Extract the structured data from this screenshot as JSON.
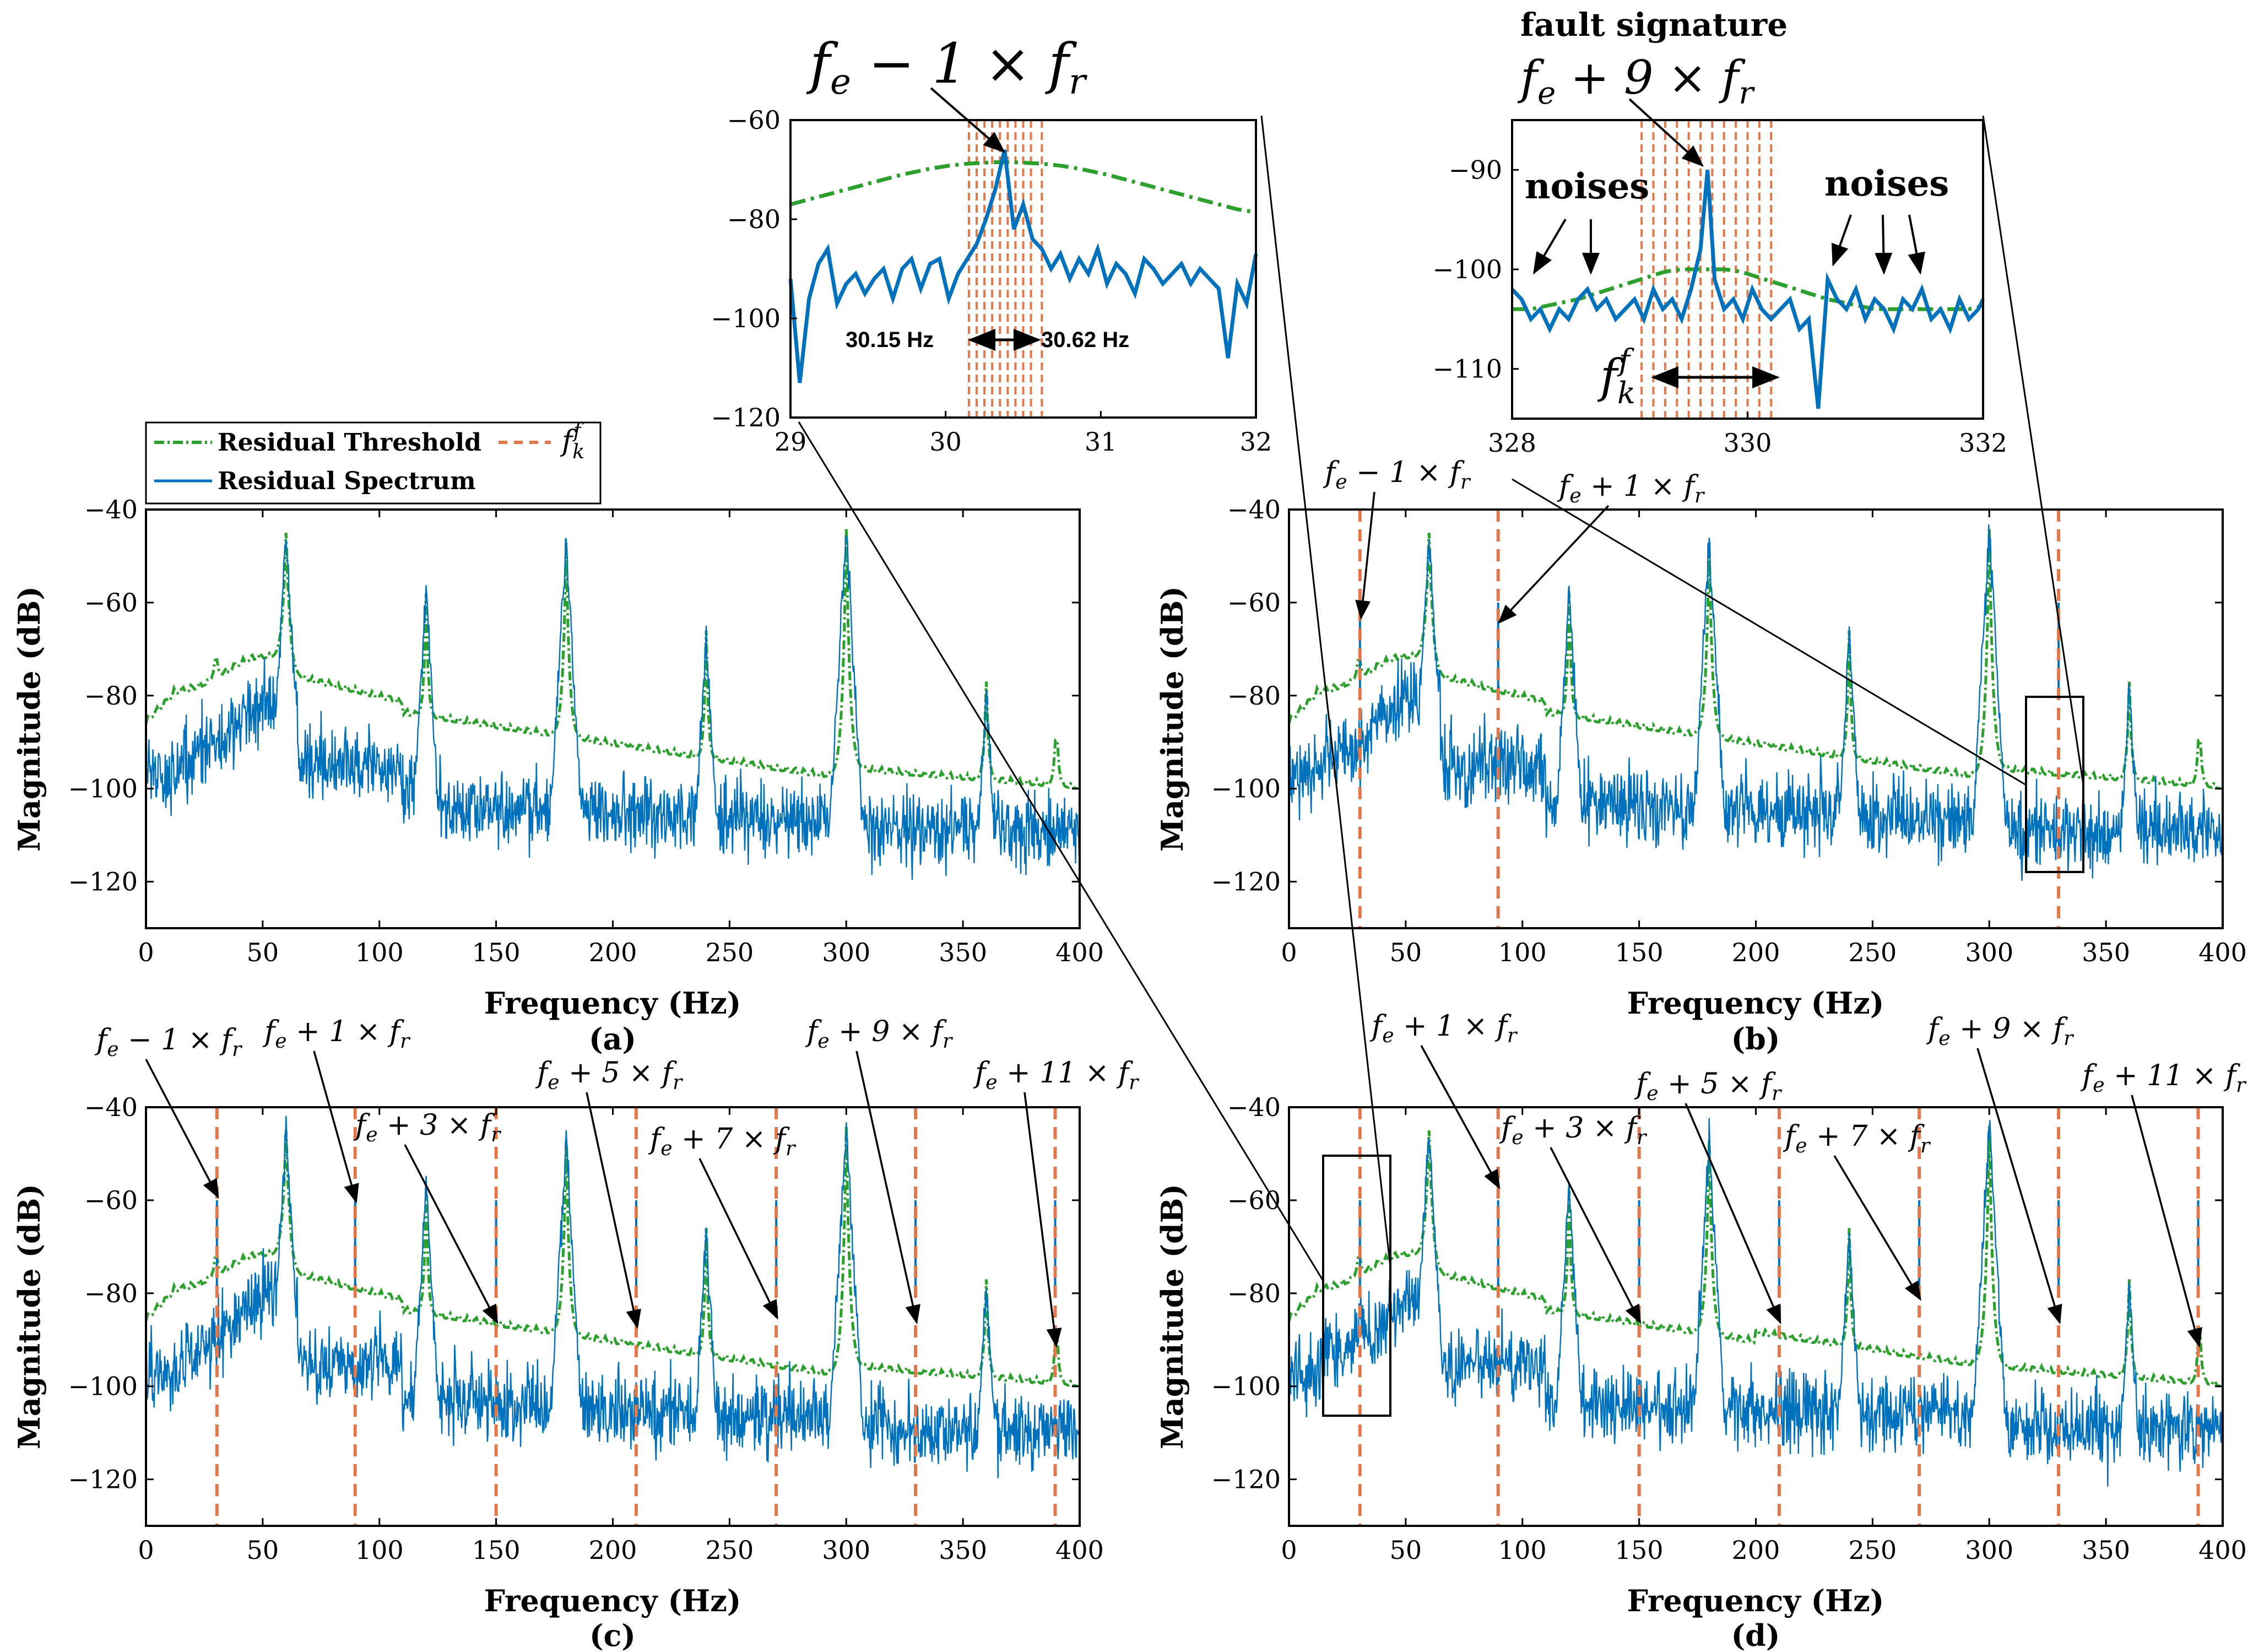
{
  "colors": {
    "spectrum": "#0072BD",
    "threshold": "#2CA02C",
    "fault": "#E2774A",
    "axis": "#000000"
  },
  "legend": {
    "threshold_label": "Residual Threshold",
    "spectrum_label": "Residual Spectrum",
    "fault_label": "f",
    "fault_sup": "f",
    "fault_sub": "k"
  },
  "common": {
    "xlabel": "Frequency (Hz)",
    "ylabel": "Magnitude (dB)"
  },
  "chart_data": [
    {
      "id": "a",
      "type": "line",
      "panel_label": "(a)",
      "xlim": [
        0,
        400
      ],
      "ylim": [
        -130,
        -40
      ],
      "xticks": [
        "0",
        "50",
        "100",
        "150",
        "200",
        "250",
        "300",
        "350",
        "400"
      ],
      "yticks": [
        "−40",
        "−60",
        "−80",
        "−100",
        "−120"
      ],
      "peaks_hz": [
        60,
        120,
        180,
        240,
        300,
        360
      ],
      "fault_lines_hz": [],
      "annotations": []
    },
    {
      "id": "b",
      "type": "line",
      "panel_label": "(b)",
      "xlim": [
        0,
        400
      ],
      "ylim": [
        -130,
        -40
      ],
      "xticks": [
        "0",
        "50",
        "100",
        "150",
        "200",
        "250",
        "300",
        "350",
        "400"
      ],
      "yticks": [
        "−40",
        "−60",
        "−80",
        "−100",
        "−120"
      ],
      "peaks_hz": [
        60,
        120,
        180,
        240,
        300,
        360
      ],
      "fault_lines_hz": [
        30.4,
        89.6,
        329.7
      ],
      "annotations": [
        {
          "base": "f",
          "sub": "e",
          "op": " − 1 × ",
          "base2": "f",
          "sub2": "r",
          "x_hz": 30.4,
          "y_db": -64
        },
        {
          "base": "f",
          "sub": "e",
          "op": " + 1 × ",
          "base2": "f",
          "sub2": "r",
          "x_hz": 89.6,
          "y_db": -65
        }
      ]
    },
    {
      "id": "c",
      "type": "line",
      "panel_label": "(c)",
      "xlim": [
        0,
        400
      ],
      "ylim": [
        -130,
        -40
      ],
      "xticks": [
        "0",
        "50",
        "100",
        "150",
        "200",
        "250",
        "300",
        "350",
        "400"
      ],
      "yticks": [
        "−40",
        "−60",
        "−80",
        "−100",
        "−120"
      ],
      "peaks_hz": [
        60,
        120,
        180,
        240,
        300,
        360
      ],
      "fault_lines_hz": [
        30.4,
        89.6,
        150,
        210,
        270,
        329.7,
        389.5
      ],
      "annotations": [
        {
          "base": "f",
          "sub": "e",
          "op": " − 1 × ",
          "base2": "f",
          "sub2": "r",
          "x_hz": 30.4,
          "y_db": -60
        },
        {
          "base": "f",
          "sub": "e",
          "op": " + 1 × ",
          "base2": "f",
          "sub2": "r",
          "x_hz": 89.6,
          "y_db": -61
        },
        {
          "base": "f",
          "sub": "e",
          "op": " + 3 × ",
          "base2": "f",
          "sub2": "r",
          "x_hz": 150,
          "y_db": -87
        },
        {
          "base": "f",
          "sub": "e",
          "op": " + 5 × ",
          "base2": "f",
          "sub2": "r",
          "x_hz": 210,
          "y_db": -88
        },
        {
          "base": "f",
          "sub": "e",
          "op": " + 7 × ",
          "base2": "f",
          "sub2": "r",
          "x_hz": 270,
          "y_db": -86
        },
        {
          "base": "f",
          "sub": "e",
          "op": " + 9 × ",
          "base2": "f",
          "sub2": "r",
          "x_hz": 329.7,
          "y_db": -87
        },
        {
          "base": "f",
          "sub": "e",
          "op": " + 11 × ",
          "base2": "f",
          "sub2": "r",
          "x_hz": 389.5,
          "y_db": -92
        }
      ]
    },
    {
      "id": "d",
      "type": "line",
      "panel_label": "(d)",
      "xlim": [
        0,
        400
      ],
      "ylim": [
        -130,
        -40
      ],
      "xticks": [
        "0",
        "50",
        "100",
        "150",
        "200",
        "250",
        "300",
        "350",
        "400"
      ],
      "yticks": [
        "−40",
        "−60",
        "−80",
        "−100",
        "−120"
      ],
      "peaks_hz": [
        60,
        120,
        180,
        240,
        300,
        360
      ],
      "fault_lines_hz": [
        30.4,
        89.6,
        150,
        210,
        270,
        329.7,
        389.5
      ],
      "annotations": [
        {
          "base": "f",
          "sub": "e",
          "op": " + 1 × ",
          "base2": "f",
          "sub2": "r",
          "x_hz": 89.6,
          "y_db": -58
        },
        {
          "base": "f",
          "sub": "e",
          "op": " + 3 × ",
          "base2": "f",
          "sub2": "r",
          "x_hz": 150,
          "y_db": -87
        },
        {
          "base": "f",
          "sub": "e",
          "op": " + 5 × ",
          "base2": "f",
          "sub2": "r",
          "x_hz": 210,
          "y_db": -87
        },
        {
          "base": "f",
          "sub": "e",
          "op": " + 7 × ",
          "base2": "f",
          "sub2": "r",
          "x_hz": 270,
          "y_db": -82
        },
        {
          "base": "f",
          "sub": "e",
          "op": " + 9 × ",
          "base2": "f",
          "sub2": "r",
          "x_hz": 329.7,
          "y_db": -87
        },
        {
          "base": "f",
          "sub": "e",
          "op": " + 11 × ",
          "base2": "f",
          "sub2": "r",
          "x_hz": 389.5,
          "y_db": -92
        }
      ]
    },
    {
      "id": "inset-left",
      "type": "line",
      "xlim": [
        29,
        32
      ],
      "ylim": [
        -120,
        -60
      ],
      "xticks": [
        "29",
        "30",
        "31",
        "32"
      ],
      "yticks": [
        "-60",
        "-80",
        "-100",
        "-120"
      ],
      "x": [
        29.0,
        29.06,
        29.12,
        29.18,
        29.24,
        29.3,
        29.36,
        29.42,
        29.48,
        29.54,
        29.6,
        29.66,
        29.72,
        29.78,
        29.84,
        29.9,
        29.96,
        30.02,
        30.08,
        30.14,
        30.2,
        30.26,
        30.32,
        30.38,
        30.44,
        30.5,
        30.56,
        30.62,
        30.68,
        30.74,
        30.8,
        30.86,
        30.92,
        30.98,
        31.04,
        31.1,
        31.16,
        31.22,
        31.28,
        31.34,
        31.4,
        31.46,
        31.52,
        31.58,
        31.64,
        31.7,
        31.76,
        31.82,
        31.88,
        31.94,
        32.0
      ],
      "spectrum_db": [
        -92,
        -113,
        -96,
        -89,
        -86,
        -97,
        -93,
        -91,
        -95,
        -92,
        -90,
        -96,
        -90,
        -88,
        -94,
        -89,
        -88,
        -96,
        -91,
        -88,
        -85,
        -80,
        -74,
        -66,
        -82,
        -77,
        -84,
        -86,
        -90,
        -87,
        -92,
        -88,
        -91,
        -86,
        -93,
        -89,
        -91,
        -95,
        -88,
        -90,
        -93,
        -91,
        -89,
        -93,
        -90,
        -92,
        -94,
        -108,
        -93,
        -97,
        -87
      ],
      "threshold_db": [
        -77,
        -76.5,
        -76,
        -75.5,
        -75,
        -74.5,
        -74,
        -73.5,
        -73,
        -72.5,
        -72,
        -71.5,
        -71,
        -70.6,
        -70.2,
        -69.8,
        -69.5,
        -69.2,
        -69,
        -68.8,
        -68.7,
        -68.6,
        -68.5,
        -68.5,
        -68.5,
        -68.6,
        -68.7,
        -68.8,
        -69,
        -69.2,
        -69.5,
        -69.8,
        -70.2,
        -70.6,
        -71,
        -71.5,
        -72,
        -72.5,
        -73,
        -73.5,
        -74,
        -74.5,
        -75,
        -75.5,
        -76,
        -76.5,
        -77,
        -77.5,
        -78,
        -78.3,
        -78.6
      ],
      "fault_lines_x": [
        30.15,
        30.2,
        30.25,
        30.3,
        30.35,
        30.4,
        30.45,
        30.5,
        30.55,
        30.62
      ],
      "title_base": "f",
      "title_sub": "e",
      "title_op": " − 1 × ",
      "title_base2": "f",
      "title_sub2": "r",
      "range_left": "30.15 Hz",
      "range_right": "30.62 Hz"
    },
    {
      "id": "inset-right",
      "type": "line",
      "xlim": [
        328,
        332
      ],
      "ylim": [
        -115,
        -85
      ],
      "xticks": [
        "328",
        "330",
        "332"
      ],
      "yticks": [
        "-90",
        "-100",
        "-110"
      ],
      "x": [
        328.0,
        328.08,
        328.16,
        328.24,
        328.32,
        328.4,
        328.48,
        328.56,
        328.64,
        328.72,
        328.8,
        328.88,
        328.96,
        329.04,
        329.12,
        329.2,
        329.28,
        329.36,
        329.44,
        329.52,
        329.6,
        329.66,
        329.72,
        329.8,
        329.88,
        329.96,
        330.04,
        330.12,
        330.2,
        330.28,
        330.36,
        330.44,
        330.52,
        330.6,
        330.68,
        330.76,
        330.84,
        330.92,
        331.0,
        331.08,
        331.16,
        331.24,
        331.32,
        331.4,
        331.48,
        331.56,
        331.64,
        331.72,
        331.8,
        331.88,
        331.96,
        332.0
      ],
      "spectrum_db": [
        -102,
        -103,
        -105,
        -104,
        -106,
        -104,
        -105,
        -103,
        -102,
        -104,
        -103,
        -105,
        -104,
        -103,
        -105,
        -102,
        -104,
        -103,
        -105,
        -102,
        -98,
        -90,
        -101,
        -104,
        -103,
        -105,
        -102,
        -104,
        -105,
        -104,
        -103,
        -106,
        -105,
        -114,
        -101,
        -103,
        -104,
        -102,
        -105,
        -103,
        -104,
        -106,
        -103,
        -104,
        -102,
        -105,
        -104,
        -106,
        -103,
        -105,
        -104,
        -103
      ],
      "threshold_db": [
        -104,
        -104,
        -104,
        -103.8,
        -103.6,
        -103.4,
        -103.2,
        -103,
        -102.7,
        -102.4,
        -102.1,
        -101.8,
        -101.5,
        -101.2,
        -100.9,
        -100.6,
        -100.3,
        -100.1,
        -100,
        -100,
        -100,
        -100,
        -100,
        -100,
        -100.1,
        -100.3,
        -100.6,
        -100.9,
        -101.2,
        -101.5,
        -101.8,
        -102.1,
        -102.4,
        -102.7,
        -103,
        -103.2,
        -103.4,
        -103.6,
        -103.8,
        -104,
        -104,
        -104,
        -104,
        -104,
        -104,
        -104,
        -104,
        -104,
        -104,
        -104,
        -103.8,
        -103.6
      ],
      "fault_lines_x": [
        329.1,
        329.2,
        329.3,
        329.4,
        329.5,
        329.6,
        329.7,
        329.8,
        329.9,
        330.0,
        330.1,
        330.2
      ],
      "title_label": "fault signature",
      "title_base": "f",
      "title_sub": "e",
      "title_op": " + 9 × ",
      "title_base2": "f",
      "title_sub2": "r",
      "noise_label": "noises",
      "range_base": "f",
      "range_sup": "f",
      "range_sub": "k"
    }
  ]
}
